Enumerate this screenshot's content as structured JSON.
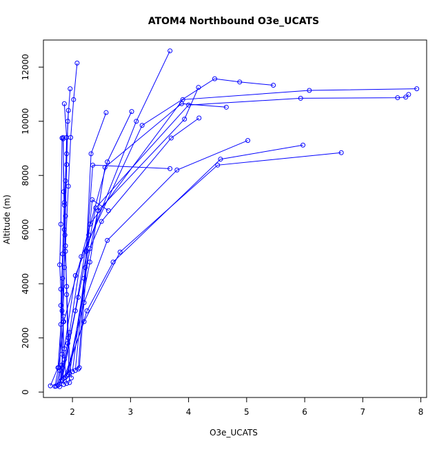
{
  "chart_data": {
    "type": "line",
    "title": "ATOM4 Northbound O3e_UCATS",
    "xlabel": "O3e_UCATS",
    "ylabel": "Altitude (m)",
    "xlim": [
      1.5,
      8.1
    ],
    "ylim": [
      -200,
      13000
    ],
    "x_ticks": [
      2,
      3,
      4,
      5,
      6,
      7,
      8
    ],
    "y_ticks": [
      0,
      2000,
      4000,
      6000,
      8000,
      10000,
      12000
    ],
    "grid": false,
    "legend": "none",
    "colors": {
      "series": "#0000ff",
      "axes": "#000000",
      "background": "#ffffff"
    },
    "series": [
      {
        "x": [
          1.62,
          1.75,
          1.82,
          1.88,
          1.93,
          1.97,
          2.02,
          2.08
        ],
        "y": [
          230,
          900,
          3000,
          5400,
          7600,
          9400,
          10800,
          12150
        ]
      },
      {
        "x": [
          1.72,
          1.78,
          1.8,
          1.83,
          1.86,
          1.88,
          1.9,
          1.86
        ],
        "y": [
          220,
          800,
          2500,
          4200,
          6000,
          7800,
          9400,
          10650
        ]
      },
      {
        "x": [
          1.78,
          1.82,
          1.84,
          1.86,
          1.88,
          1.9,
          1.92,
          1.96
        ],
        "y": [
          200,
          1000,
          2800,
          4600,
          6500,
          8400,
          10000,
          11200
        ]
      },
      {
        "x": [
          1.85,
          1.82,
          1.8,
          1.83,
          1.86,
          1.9,
          1.93
        ],
        "y": [
          280,
          1400,
          3200,
          5100,
          7000,
          8800,
          10400
        ]
      },
      {
        "x": [
          1.9,
          1.86,
          1.84,
          1.8,
          1.78,
          1.8,
          1.82
        ],
        "y": [
          320,
          1200,
          2600,
          3800,
          4700,
          6200,
          9380
        ]
      },
      {
        "x": [
          1.95,
          1.92,
          1.9,
          1.88,
          1.86,
          1.84
        ],
        "y": [
          350,
          1800,
          3600,
          5200,
          6900,
          9350
        ]
      },
      {
        "x": [
          1.98,
          1.93,
          1.9,
          1.87,
          1.85,
          1.84
        ],
        "y": [
          520,
          2000,
          3900,
          5800,
          7400,
          9400
        ]
      },
      {
        "x": [
          1.7,
          1.76,
          1.85,
          2.6,
          3.02
        ],
        "y": [
          210,
          900,
          2600,
          8500,
          10360
        ]
      },
      {
        "x": [
          1.75,
          1.86,
          2.05,
          3.1,
          3.68
        ],
        "y": [
          250,
          1600,
          4300,
          10000,
          12600
        ]
      },
      {
        "x": [
          1.78,
          1.95,
          2.15,
          3.2,
          4.45,
          4.88,
          5.46
        ],
        "y": [
          300,
          2200,
          5000,
          9850,
          11570,
          11450,
          11330
        ]
      },
      {
        "x": [
          1.8,
          2.05,
          2.3,
          3.9,
          6.08,
          7.93
        ],
        "y": [
          400,
          3000,
          6200,
          10800,
          11140,
          11200
        ]
      },
      {
        "x": [
          1.82,
          2.1,
          2.4,
          4.0,
          5.93,
          7.6,
          7.74,
          7.79
        ],
        "y": [
          450,
          3500,
          6800,
          10600,
          10850,
          10870,
          10890,
          10990
        ]
      },
      {
        "x": [
          1.85,
          2.2,
          2.82,
          4.5,
          6.63
        ],
        "y": [
          500,
          2600,
          5170,
          8380,
          8840
        ]
      },
      {
        "x": [
          1.88,
          2.25,
          2.7,
          4.55,
          5.97
        ],
        "y": [
          550,
          3000,
          4800,
          8600,
          9120
        ]
      },
      {
        "x": [
          1.9,
          2.2,
          2.6,
          3.8,
          5.02
        ],
        "y": [
          600,
          3300,
          5600,
          8200,
          9290
        ]
      },
      {
        "x": [
          1.92,
          2.3,
          2.56,
          3.88,
          4.65
        ],
        "y": [
          650,
          4800,
          8300,
          10650,
          10520
        ]
      },
      {
        "x": [
          1.95,
          2.3,
          2.5,
          3.7,
          4.18
        ],
        "y": [
          700,
          5300,
          6300,
          9380,
          10120
        ]
      },
      {
        "x": [
          2.0,
          2.2,
          2.44,
          3.93,
          4.17
        ],
        "y": [
          750,
          4200,
          6700,
          10080,
          11250
        ]
      },
      {
        "x": [
          2.05,
          2.22,
          2.35,
          3.68
        ],
        "y": [
          800,
          4600,
          8380,
          8250
        ]
      },
      {
        "x": [
          2.1,
          2.24,
          2.32,
          2.58
        ],
        "y": [
          850,
          5200,
          8800,
          10320
        ]
      },
      {
        "x": [
          2.12,
          2.28,
          2.34,
          2.62
        ],
        "y": [
          900,
          5800,
          7100,
          6700
        ]
      }
    ]
  }
}
